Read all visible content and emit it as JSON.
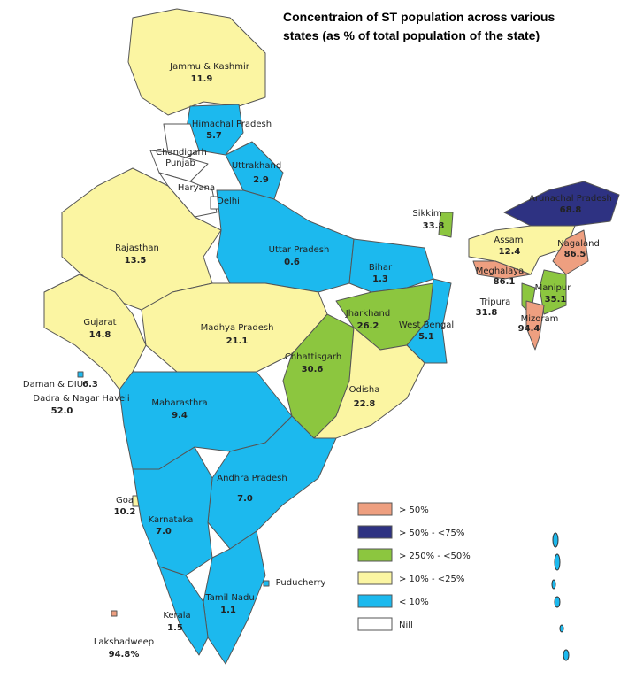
{
  "title": [
    "Concentraion of ST population across various",
    "states (as % of total population of the state)"
  ],
  "states": [
    {
      "name": "Jammu & Kashmir",
      "value": "11.9",
      "color": "#fbf5a2"
    },
    {
      "name": "Himachal Pradesh",
      "value": "5.7",
      "color": "#1cb9ee"
    },
    {
      "name": "Chandigarh",
      "color": "#ffffff"
    },
    {
      "name": "Punjab",
      "color": "#ffffff"
    },
    {
      "name": "Uttrakhand",
      "value": "2.9",
      "color": "#1cb9ee"
    },
    {
      "name": "Haryana",
      "color": "#ffffff"
    },
    {
      "name": "Delhi",
      "color": "#ffffff"
    },
    {
      "name": "Rajasthan",
      "value": "13.5",
      "color": "#fbf5a2"
    },
    {
      "name": "Gujarat",
      "value": "14.8",
      "color": "#fbf5a2"
    },
    {
      "name": "Daman & DIU",
      "value": "6.3",
      "color": "#1cb9ee"
    },
    {
      "name": "Dadra & Nagar Haveli",
      "value": "52.0",
      "color": "#ee9f80"
    },
    {
      "name": "Uttar Pradesh",
      "value": "0.6",
      "color": "#1cb9ee"
    },
    {
      "name": "Bihar",
      "value": "1.3",
      "color": "#1cb9ee"
    },
    {
      "name": "Sikkim",
      "value": "33.8",
      "color": "#8cc63f"
    },
    {
      "name": "Madhya Pradesh",
      "value": "21.1",
      "color": "#fbf5a2"
    },
    {
      "name": "Jharkhand",
      "value": "26.2",
      "color": "#8cc63f"
    },
    {
      "name": "West Bengal",
      "value": "5.1",
      "color": "#1cb9ee"
    },
    {
      "name": "Chhattisgarh",
      "value": "30.6",
      "color": "#8cc63f"
    },
    {
      "name": "Odisha",
      "value": "22.8",
      "color": "#fbf5a2"
    },
    {
      "name": "Maharasthra",
      "value": "9.4",
      "color": "#1cb9ee"
    },
    {
      "name": "Andhra Pradesh",
      "value": "7.0",
      "color": "#1cb9ee"
    },
    {
      "name": "Goa",
      "value": "10.2",
      "color": "#fbf5a2"
    },
    {
      "name": "Karnataka",
      "value": "7.0",
      "color": "#1cb9ee"
    },
    {
      "name": "Tamil Nadu",
      "value": "1.1",
      "color": "#1cb9ee"
    },
    {
      "name": "Kerala",
      "value": "1.5",
      "color": "#1cb9ee"
    },
    {
      "name": "Puducherry",
      "color": "#1cb9ee"
    },
    {
      "name": "Lakshadweep",
      "value": "94.8%",
      "color": "#ee9f80"
    },
    {
      "name": "Arunachal Pradesh",
      "value": "68.8",
      "color": "#2e3282"
    },
    {
      "name": "Assam",
      "value": "12.4",
      "color": "#fbf5a2"
    },
    {
      "name": "Nagaland",
      "value": "86.5",
      "color": "#ee9f80"
    },
    {
      "name": "Meghalaya",
      "value": "86.1",
      "color": "#ee9f80"
    },
    {
      "name": "Manipur",
      "value": "35.1",
      "color": "#8cc63f"
    },
    {
      "name": "Tripura",
      "value": "31.8",
      "color": "#8cc63f"
    },
    {
      "name": "Mizoram",
      "value": "94.4",
      "color": "#ee9f80"
    }
  ],
  "legend": [
    {
      "label": "> 50%",
      "color": "#ee9f80"
    },
    {
      "label": "> 50% - <75%",
      "color": "#2e3282"
    },
    {
      "label": "> 250% - <50%",
      "color": "#8cc63f"
    },
    {
      "label": "> 10% - <25%",
      "color": "#fbf5a2"
    },
    {
      "label": "< 10%",
      "color": "#1cb9ee"
    },
    {
      "label": "Nill",
      "color": "#ffffff"
    }
  ]
}
